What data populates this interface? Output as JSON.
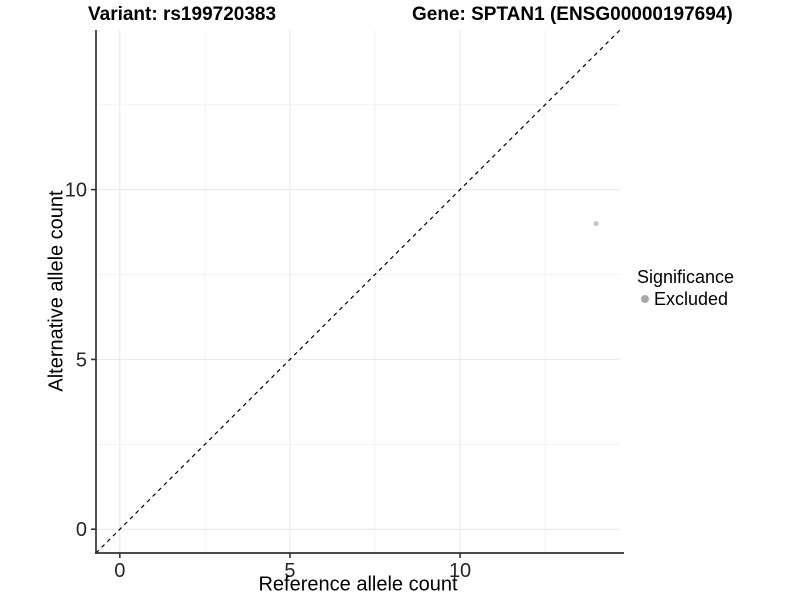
{
  "title": {
    "variant": "Variant: rs199720383",
    "gene": "Gene: SPTAN1 (ENSG00000197694)"
  },
  "axes": {
    "x_label": "Reference allele count",
    "y_label": "Alternative allele count"
  },
  "legend": {
    "title": "Significance",
    "items": [
      {
        "label": "Excluded",
        "color": "#a8a8a8"
      }
    ]
  },
  "chart_data": {
    "type": "scatter",
    "title": "Variant: rs199720383 / Gene: SPTAN1 (ENSG00000197694)",
    "xlabel": "Reference allele count",
    "ylabel": "Alternative allele count",
    "xlim": [
      -0.7,
      14.7
    ],
    "ylim": [
      -0.7,
      14.7
    ],
    "x_ticks": [
      0,
      5,
      10
    ],
    "y_ticks": [
      0,
      5,
      10
    ],
    "x_minor_ticks": [
      2.5,
      7.5,
      12.5
    ],
    "y_minor_ticks": [
      2.5,
      7.5,
      12.5
    ],
    "grid": "major+minor, very faint on white",
    "legend_position": "right",
    "series": [
      {
        "name": "Excluded",
        "color": "#c6c6c6",
        "points": [
          {
            "x": 14,
            "y": 9
          }
        ]
      }
    ],
    "reference_line": {
      "kind": "identity y=x",
      "style": "dashed",
      "color": "#000000"
    }
  },
  "colors": {
    "background": "#ffffff",
    "axis_line": "#333333",
    "tick_label": "#262626",
    "grid_major": "#e7e7e7",
    "grid_minor": "#f3f3f3",
    "point": "#c6c6c6",
    "legend_key": "#a8a8a8",
    "text": "#000000"
  }
}
